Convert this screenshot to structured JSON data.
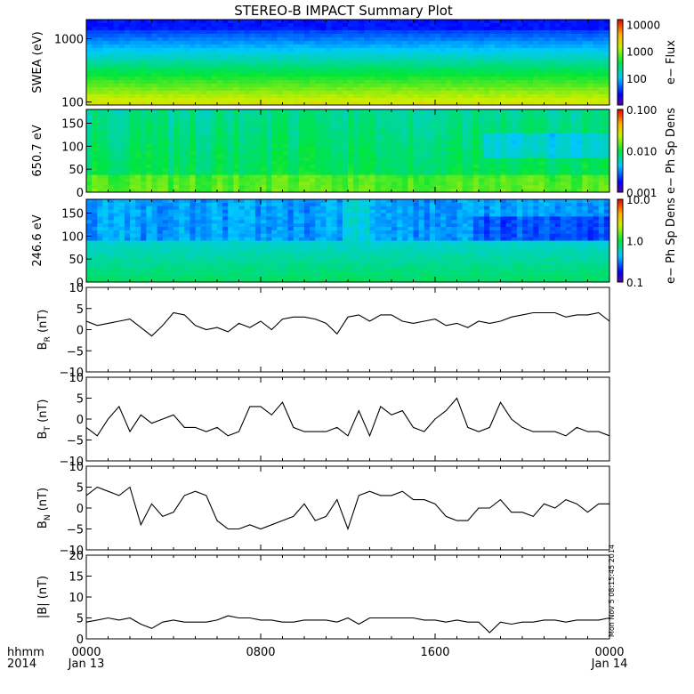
{
  "title": "STEREO-B IMPACT Summary Plot",
  "stamp": "Mon Nov  5 08:15:45 2014",
  "time_axis": {
    "fmt_label": "hhmm",
    "year": "2014",
    "ticks": [
      {
        "label": "0000",
        "date": "Jan 13"
      },
      {
        "label": "0800",
        "date": ""
      },
      {
        "label": "1600",
        "date": ""
      },
      {
        "label": "0000",
        "date": "Jan 14"
      }
    ]
  },
  "chart_data": [
    {
      "type": "heatmap",
      "ylabel": "SWEA (eV)",
      "yscale": "log",
      "ylim": [
        90,
        2000
      ],
      "yticks": [
        "100",
        "1000"
      ],
      "colorbar": {
        "label": "e− Flux",
        "scale": "log",
        "ticks": [
          "100",
          "1000",
          "10000"
        ],
        "range": [
          10,
          15000
        ]
      },
      "description_values": {
        "energy_eV": [
          100,
          300,
          600,
          1000,
          1500,
          2000
        ],
        "flux": [
          9000,
          3000,
          1000,
          300,
          60,
          20
        ]
      }
    },
    {
      "type": "heatmap",
      "ylabel": "650.7 eV",
      "ylim": [
        0,
        180
      ],
      "yticks": [
        "0",
        "50",
        "100",
        "150"
      ],
      "colorbar": {
        "label": "e− Ph Sp Dens",
        "scale": "log",
        "ticks": [
          "0.001",
          "0.010",
          "0.100"
        ],
        "range": [
          0.001,
          0.1
        ]
      }
    },
    {
      "type": "heatmap",
      "ylabel": "246.6 eV",
      "ylim": [
        0,
        180
      ],
      "yticks": [
        "0",
        "50",
        "100",
        "150"
      ],
      "colorbar": {
        "label": "e− Ph Sp Dens",
        "scale": "log",
        "ticks": [
          "0.1",
          "1.0",
          "10.0"
        ],
        "range": [
          0.1,
          10
        ]
      }
    },
    {
      "type": "line",
      "ylabel_main": "B",
      "ylabel_sub": "R",
      "ylabel_unit": " (nT)",
      "ylim": [
        -10,
        10
      ],
      "yticks": [
        "−10",
        "−5",
        "0",
        "5",
        "10"
      ],
      "x_hours": [
        0,
        0.5,
        1,
        1.5,
        2,
        2.5,
        3,
        3.5,
        4,
        4.5,
        5,
        5.5,
        6,
        6.5,
        7,
        7.5,
        8,
        8.5,
        9,
        9.5,
        10,
        10.5,
        11,
        11.5,
        12,
        12.5,
        13,
        13.5,
        14,
        14.5,
        15,
        15.5,
        16,
        16.5,
        17,
        17.5,
        18,
        18.5,
        19,
        19.5,
        20,
        20.5,
        21,
        21.5,
        22,
        22.5,
        23,
        23.5,
        24
      ],
      "values": [
        2,
        1,
        1.5,
        2,
        2.5,
        0.5,
        -1.5,
        1,
        4,
        3.5,
        1,
        0,
        0.5,
        -0.5,
        1.5,
        0.5,
        2,
        0,
        2.5,
        3,
        3,
        2.5,
        1.5,
        -1,
        3,
        3.5,
        2,
        3.5,
        3.5,
        2,
        1.5,
        2,
        2.5,
        1,
        1.5,
        0.5,
        2,
        1.5,
        2,
        3,
        3.5,
        4,
        4,
        4,
        3,
        3.5,
        3.5,
        4,
        2
      ]
    },
    {
      "type": "line",
      "ylabel_main": "B",
      "ylabel_sub": "T",
      "ylabel_unit": " (nT)",
      "ylim": [
        -10,
        10
      ],
      "yticks": [
        "−10",
        "−5",
        "0",
        "5",
        "10"
      ],
      "x_hours": [
        0,
        0.5,
        1,
        1.5,
        2,
        2.5,
        3,
        3.5,
        4,
        4.5,
        5,
        5.5,
        6,
        6.5,
        7,
        7.5,
        8,
        8.5,
        9,
        9.5,
        10,
        10.5,
        11,
        11.5,
        12,
        12.5,
        13,
        13.5,
        14,
        14.5,
        15,
        15.5,
        16,
        16.5,
        17,
        17.5,
        18,
        18.5,
        19,
        19.5,
        20,
        20.5,
        21,
        21.5,
        22,
        22.5,
        23,
        23.5,
        24
      ],
      "values": [
        -2,
        -4,
        0,
        3,
        -3,
        1,
        -1,
        0,
        1,
        -2,
        -2,
        -3,
        -2,
        -4,
        -3,
        3,
        3,
        1,
        4,
        -2,
        -3,
        -3,
        -3,
        -2,
        -4,
        2,
        -4,
        3,
        1,
        2,
        -2,
        -3,
        0,
        2,
        5,
        -2,
        -3,
        -2,
        4,
        0,
        -2,
        -3,
        -3,
        -3,
        -4,
        -2,
        -3,
        -3,
        -4
      ]
    },
    {
      "type": "line",
      "ylabel_main": "B",
      "ylabel_sub": "N",
      "ylabel_unit": " (nT)",
      "ylim": [
        -10,
        10
      ],
      "yticks": [
        "−10",
        "−5",
        "0",
        "5",
        "10"
      ],
      "x_hours": [
        0,
        0.5,
        1,
        1.5,
        2,
        2.5,
        3,
        3.5,
        4,
        4.5,
        5,
        5.5,
        6,
        6.5,
        7,
        7.5,
        8,
        8.5,
        9,
        9.5,
        10,
        10.5,
        11,
        11.5,
        12,
        12.5,
        13,
        13.5,
        14,
        14.5,
        15,
        15.5,
        16,
        16.5,
        17,
        17.5,
        18,
        18.5,
        19,
        19.5,
        20,
        20.5,
        21,
        21.5,
        22,
        22.5,
        23,
        23.5,
        24
      ],
      "values": [
        3,
        5,
        4,
        3,
        5,
        -4,
        1,
        -2,
        -1,
        3,
        4,
        3,
        -3,
        -5,
        -5,
        -4,
        -5,
        -4,
        -3,
        -2,
        1,
        -3,
        -2,
        2,
        -5,
        3,
        4,
        3,
        3,
        4,
        2,
        2,
        1,
        -2,
        -3,
        -3,
        0,
        0,
        2,
        -1,
        -1,
        -2,
        1,
        0,
        2,
        1,
        -1,
        1,
        1
      ]
    },
    {
      "type": "line",
      "ylabel_main": "|B|",
      "ylabel_sub": "",
      "ylabel_unit": " (nT)",
      "ylim": [
        0,
        20
      ],
      "yticks": [
        "0",
        "5",
        "10",
        "15",
        "20"
      ],
      "x_hours": [
        0,
        0.5,
        1,
        1.5,
        2,
        2.5,
        3,
        3.5,
        4,
        4.5,
        5,
        5.5,
        6,
        6.5,
        7,
        7.5,
        8,
        8.5,
        9,
        9.5,
        10,
        10.5,
        11,
        11.5,
        12,
        12.5,
        13,
        13.5,
        14,
        14.5,
        15,
        15.5,
        16,
        16.5,
        17,
        17.5,
        18,
        18.5,
        19,
        19.5,
        20,
        20.5,
        21,
        21.5,
        22,
        22.5,
        23,
        23.5,
        24
      ],
      "values": [
        4,
        4.5,
        5,
        4.5,
        5,
        3.5,
        2.5,
        4,
        4.5,
        4,
        4,
        4,
        4.5,
        5.5,
        5,
        5,
        4.5,
        4.5,
        4,
        4,
        4.5,
        4.5,
        4.5,
        4,
        5,
        3.5,
        5,
        5,
        5,
        5,
        5,
        4.5,
        4.5,
        4,
        4.5,
        4,
        4,
        1.5,
        4,
        3.5,
        4,
        4,
        4.5,
        4.5,
        4,
        4.5,
        4.5,
        4.5,
        5
      ]
    }
  ]
}
